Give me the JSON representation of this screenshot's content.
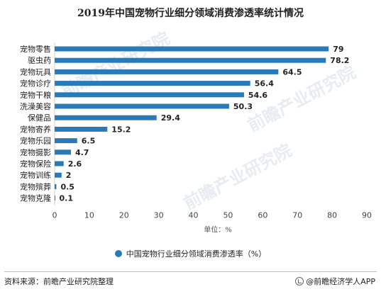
{
  "title": "2019年中国宠物行业细分领域消费渗透率统计情况",
  "chart_data": {
    "type": "bar",
    "orientation": "horizontal",
    "categories": [
      "宠物零售",
      "驱虫药",
      "宠物玩具",
      "宠物诊疗",
      "宠物干粮",
      "洗澡美容",
      "保健品",
      "宠物寄养",
      "宠物乐园",
      "宠物摄影",
      "宠物保险",
      "宠物训练",
      "宠物殡葬",
      "宠物克隆"
    ],
    "value_labels": [
      "79",
      "78.2",
      "64.5",
      "56.4",
      "54.6",
      "50.3",
      "29.4",
      "15.2",
      "6.5",
      "4.7",
      "2.6",
      "2",
      "0.5",
      "0.1"
    ],
    "series": [
      {
        "name": "中国宠物行业细分领域消费渗透率（%）",
        "values": [
          79,
          78.2,
          64.5,
          56.4,
          54.6,
          50.3,
          29.4,
          15.2,
          6.5,
          4.7,
          2.6,
          2,
          0.5,
          0.1
        ]
      }
    ],
    "xlim": [
      0,
      90
    ],
    "xticks": [
      "0",
      "10",
      "20",
      "30",
      "40",
      "50",
      "60",
      "70",
      "80",
      "90"
    ],
    "xlabel": "单位：%",
    "grid": false,
    "legend_position": "bottom",
    "bar_color": "#2a7ab8"
  },
  "legend": {
    "label": "中国宠物行业细分领域消费渗透率（%）"
  },
  "footer": {
    "source": "资料来源：前瞻产业研究院整理",
    "brand": "@前瞻经济学人APP"
  },
  "watermark": {
    "text": "前瞻产业研究院"
  }
}
